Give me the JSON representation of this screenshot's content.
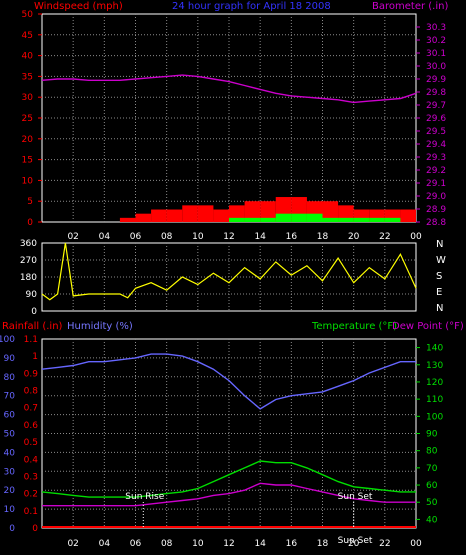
{
  "header": {
    "windspeed_label": "Windspeed (mph)",
    "title": "24 hour graph for  April 18 2008",
    "barometer_label": "Barometer (.in)"
  },
  "bottom_header": {
    "rainfall_label": "Rainfall (.in)",
    "humidity_label": "Humidity (%)",
    "temperature_label": "Temperature (°F)",
    "dewpoint_label": "Dew Point (°F)"
  },
  "compass": [
    "N",
    "W",
    "S",
    "E",
    "N"
  ],
  "sun": {
    "rise_label": "Sun Rise",
    "set_label": "Sun Set",
    "bottom_label": "Sun Set"
  },
  "colors": {
    "windspeed": "#ff0000",
    "gust": "#00ff00",
    "barometer": "#cc00cc",
    "direction": "#ffff00",
    "humidity": "#6666ff",
    "temperature": "#00dd00",
    "dewpoint": "#cc00cc",
    "rainfall": "#ff0000",
    "frame": "#ffffff",
    "grid": "#8a8a8a"
  },
  "chart_data": [
    {
      "type": "line",
      "title": "24 hour graph for  April 18 2008",
      "xlabel": "",
      "x_ticks": [
        "02",
        "04",
        "06",
        "08",
        "10",
        "12",
        "14",
        "16",
        "18",
        "20",
        "22",
        "00"
      ],
      "xlim": [
        0,
        24
      ],
      "left_axis": {
        "label": "Windspeed (mph)",
        "ticks": [
          0,
          5,
          10,
          15,
          20,
          25,
          30,
          35,
          40,
          45,
          50
        ],
        "ylim": [
          0,
          50
        ]
      },
      "right_axis": {
        "label": "Barometer (.in)",
        "ticks": [
          28.8,
          28.9,
          29.0,
          29.1,
          29.2,
          29.3,
          29.4,
          29.5,
          29.6,
          29.7,
          29.8,
          29.9,
          30.0,
          30.1,
          30.2,
          30.3
        ],
        "ylim": [
          28.8,
          30.4
        ]
      },
      "grid": true,
      "series": [
        {
          "name": "Barometer (.in)",
          "axis": "right",
          "style": "line",
          "x": [
            0,
            1,
            2,
            3,
            4,
            5,
            6,
            7,
            8,
            9,
            10,
            11,
            12,
            13,
            14,
            15,
            16,
            17,
            18,
            19,
            20,
            21,
            22,
            23,
            24
          ],
          "values": [
            29.89,
            29.9,
            29.9,
            29.89,
            29.89,
            29.89,
            29.9,
            29.91,
            29.92,
            29.93,
            29.92,
            29.9,
            29.88,
            29.85,
            29.82,
            29.79,
            29.77,
            29.76,
            29.75,
            29.74,
            29.72,
            29.73,
            29.74,
            29.75,
            29.79
          ]
        },
        {
          "name": "Windspeed (mph)",
          "axis": "left",
          "style": "bars",
          "x": [
            0,
            1,
            2,
            3,
            4,
            5,
            6,
            7,
            8,
            9,
            10,
            11,
            12,
            13,
            14,
            15,
            16,
            17,
            18,
            19,
            20,
            21,
            22,
            23,
            24
          ],
          "values": [
            0,
            0,
            0,
            0,
            0,
            1,
            2,
            3,
            3,
            4,
            4,
            3,
            4,
            5,
            5,
            6,
            6,
            5,
            5,
            4,
            3,
            3,
            3,
            3,
            3
          ]
        },
        {
          "name": "Gust",
          "axis": "left",
          "style": "bars",
          "x": [
            0,
            1,
            2,
            3,
            4,
            5,
            6,
            7,
            8,
            9,
            10,
            11,
            12,
            13,
            14,
            15,
            16,
            17,
            18,
            19,
            20,
            21,
            22,
            23,
            24
          ],
          "values": [
            0,
            0,
            0,
            0,
            0,
            0,
            0,
            0,
            0,
            0,
            0,
            0,
            1,
            1,
            1,
            2,
            2,
            2,
            1,
            1,
            1,
            1,
            1,
            0,
            0
          ]
        }
      ]
    },
    {
      "type": "line",
      "title": "",
      "x_ticks": [],
      "xlim": [
        0,
        24
      ],
      "left_axis": {
        "label": "",
        "ticks": [
          0,
          90,
          180,
          270,
          360
        ],
        "ylim": [
          0,
          360
        ]
      },
      "right_axis": {
        "label": "",
        "ticks": [
          "N",
          "W",
          "S",
          "E",
          "N"
        ]
      },
      "grid": true,
      "series": [
        {
          "name": "Wind Direction",
          "axis": "left",
          "style": "line",
          "x": [
            0,
            0.5,
            1,
            1.5,
            2,
            3,
            4,
            5,
            5.5,
            6,
            7,
            8,
            9,
            10,
            11,
            12,
            13,
            14,
            15,
            16,
            17,
            18,
            19,
            20,
            21,
            22,
            23,
            24
          ],
          "values": [
            90,
            60,
            90,
            360,
            80,
            90,
            90,
            90,
            70,
            120,
            150,
            110,
            180,
            140,
            200,
            150,
            230,
            170,
            260,
            190,
            240,
            160,
            280,
            150,
            230,
            170,
            300,
            120
          ]
        }
      ]
    },
    {
      "type": "line",
      "title": "",
      "x_ticks": [
        "02",
        "04",
        "06",
        "08",
        "10",
        "12",
        "14",
        "16",
        "18",
        "20",
        "22",
        "00"
      ],
      "xlim": [
        0,
        24
      ],
      "left_axes": [
        {
          "label": "Humidity (%)",
          "ticks": [
            0,
            10,
            20,
            30,
            40,
            50,
            60,
            70,
            80,
            90,
            100
          ],
          "ylim": [
            0,
            100
          ]
        },
        {
          "label": "Rainfall (.in)",
          "ticks": [
            0,
            0.1,
            0.2,
            0.3,
            0.4,
            0.5,
            0.6,
            0.7,
            0.8,
            0.9,
            1,
            1.1
          ]
        }
      ],
      "right_axis": {
        "label": "Temperature (°F)",
        "ticks": [
          40,
          50,
          60,
          70,
          80,
          90,
          100,
          110,
          120,
          130,
          140
        ],
        "ylim": [
          35,
          145
        ]
      },
      "grid": true,
      "annotations": [
        {
          "text": "Sun Rise",
          "x": 6.5
        },
        {
          "text": "Sun Set",
          "x": 20
        }
      ],
      "series": [
        {
          "name": "Humidity (%)",
          "axis": "left",
          "x": [
            0,
            1,
            2,
            3,
            4,
            5,
            6,
            7,
            8,
            9,
            10,
            11,
            12,
            13,
            14,
            15,
            16,
            17,
            18,
            19,
            20,
            21,
            22,
            23,
            24
          ],
          "values": [
            84,
            85,
            86,
            88,
            88,
            89,
            90,
            92,
            92,
            91,
            88,
            84,
            78,
            70,
            63,
            68,
            70,
            71,
            72,
            75,
            78,
            82,
            85,
            88,
            88
          ]
        },
        {
          "name": "Temperature (°F)",
          "axis": "right",
          "x": [
            0,
            1,
            2,
            3,
            4,
            5,
            6,
            7,
            8,
            9,
            10,
            11,
            12,
            13,
            14,
            15,
            16,
            17,
            18,
            19,
            20,
            21,
            22,
            23,
            24
          ],
          "values": [
            56,
            55,
            54,
            53,
            53,
            53,
            53,
            54,
            55,
            56,
            58,
            62,
            66,
            70,
            74,
            73,
            73,
            70,
            66,
            62,
            59,
            58,
            57,
            56,
            56
          ]
        },
        {
          "name": "Dew Point (°F)",
          "axis": "right",
          "x": [
            0,
            1,
            2,
            3,
            4,
            5,
            6,
            7,
            8,
            9,
            10,
            11,
            12,
            13,
            14,
            15,
            16,
            17,
            18,
            19,
            20,
            21,
            22,
            23,
            24
          ],
          "values": [
            48,
            48,
            48,
            48,
            48,
            48,
            48,
            49,
            50,
            51,
            52,
            54,
            55,
            57,
            61,
            60,
            60,
            58,
            56,
            54,
            52,
            51,
            50,
            50,
            50
          ]
        },
        {
          "name": "Rainfall (.in)",
          "axis": "left",
          "x": [
            0,
            24
          ],
          "values": [
            0,
            0
          ]
        }
      ]
    }
  ]
}
